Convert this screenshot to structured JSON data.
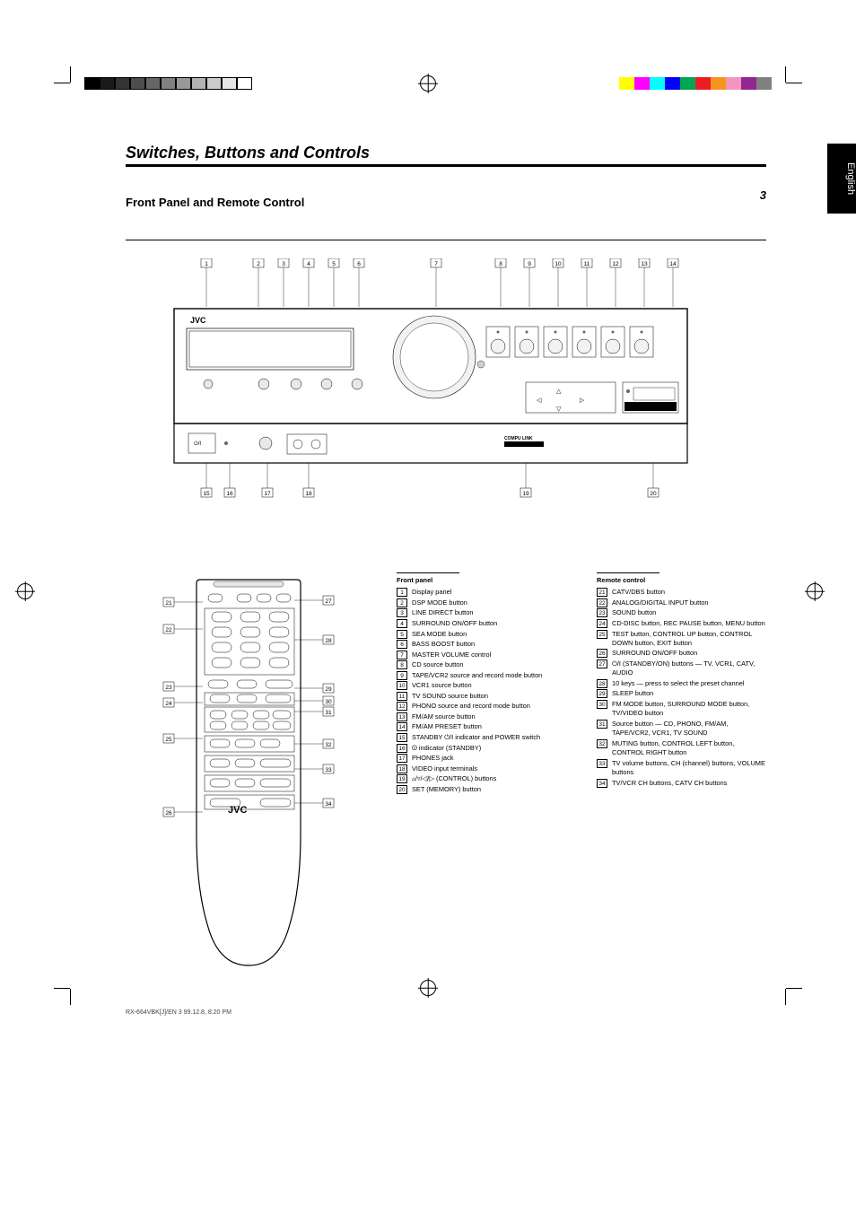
{
  "print": {
    "gray_chips": [
      "#000000",
      "#1a1a1a",
      "#333333",
      "#4d4d4d",
      "#666666",
      "#808080",
      "#999999",
      "#b3b3b3",
      "#cccccc",
      "#e6e6e6",
      "#ffffff"
    ],
    "gray_chip_border": "#000000",
    "color_chips": [
      "#ffff00",
      "#ff00ff",
      "#00ffff",
      "#0000ff",
      "#00a651",
      "#ed1c24",
      "#f7941d",
      "#f495bf",
      "#92278f",
      "#808080"
    ]
  },
  "page_number": "3",
  "tab_label": "English",
  "heading": "Switches, Buttons and Controls",
  "front_panel_heading": "Front Panel and Remote Control",
  "brand": "JVC",
  "front_labels": {
    "1": "1",
    "2": "2",
    "3": "3",
    "4": "4",
    "5": "5",
    "6": "6",
    "7": "7",
    "8": "8",
    "9": "9",
    "10": "10",
    "11": "11",
    "12": "12",
    "13": "13",
    "14": "14",
    "15": "15",
    "16": "16",
    "17": "17",
    "18": "18",
    "19": "19",
    "20": "20"
  },
  "remote_labels": {
    "21": "21",
    "22": "22",
    "23": "23",
    "24": "24",
    "25": "25",
    "26": "26",
    "27": "27",
    "28": "28",
    "29": "29",
    "30": "30",
    "31": "31",
    "32": "32",
    "33": "33",
    "34": "34"
  },
  "col1_head": "Front panel",
  "col1": [
    {
      "n": "1",
      "t": "Display panel"
    },
    {
      "n": "2",
      "t": "DSP MODE button"
    },
    {
      "n": "3",
      "t": "LINE DIRECT button"
    },
    {
      "n": "4",
      "t": "SURROUND ON/OFF button"
    },
    {
      "n": "5",
      "t": "SEA MODE button"
    },
    {
      "n": "6",
      "t": "BASS BOOST button"
    },
    {
      "n": "7",
      "t": "MASTER VOLUME control"
    },
    {
      "n": "8",
      "t": "CD source button"
    },
    {
      "n": "9",
      "t": "TAPE/VCR2 source and record mode button"
    },
    {
      "n": "10",
      "t": "VCR1 source button"
    },
    {
      "n": "11",
      "t": "TV SOUND source button"
    },
    {
      "n": "12",
      "t": "PHONO source and record mode button"
    },
    {
      "n": "13",
      "t": "FM/AM source button"
    },
    {
      "n": "14",
      "t": "FM/AM PRESET button"
    },
    {
      "n": "15",
      "t": "STANDBY ⏻/I indicator and POWER switch"
    },
    {
      "n": "16",
      "t": "⏼ indicator (STANDBY)"
    },
    {
      "n": "17",
      "t": "PHONES jack"
    },
    {
      "n": "18",
      "t": "VIDEO input terminals"
    },
    {
      "n": "19",
      "t": "▵/▿/◁/▷ (CONTROL) buttons"
    },
    {
      "n": "20",
      "t": "SET (MEMORY) button"
    }
  ],
  "col2_head": "Remote control",
  "col2": [
    {
      "n": "21",
      "t": "CATV/DBS button"
    },
    {
      "n": "22",
      "t": "ANALOG/DIGITAL INPUT button"
    },
    {
      "n": "23",
      "t": "SOUND button"
    },
    {
      "n": "24",
      "t": "CD-DISC button, REC PAUSE button, MENU button"
    },
    {
      "n": "25",
      "t": "TEST button, CONTROL UP button, CONTROL DOWN button, EXIT button"
    },
    {
      "n": "26",
      "t": "SURROUND ON/OFF button"
    },
    {
      "n": "27",
      "t": "⏻/I (STANDBY/ON) buttons — TV, VCR1, CATV, AUDIO"
    },
    {
      "n": "28",
      "t": "10 keys — press to select the preset channel"
    },
    {
      "n": "29",
      "t": "SLEEP button"
    },
    {
      "n": "30",
      "t": "FM MODE button, SURROUND MODE button, TV/VIDEO button"
    },
    {
      "n": "31",
      "t": "Source button — CD, PHONO, FM/AM, TAPE/VCR2, VCR1, TV SOUND"
    },
    {
      "n": "32",
      "t": "MUTING button, CONTROL LEFT button, CONTROL RIGHT button"
    },
    {
      "n": "33",
      "t": "TV volume buttons, CH (channel) buttons, VOLUME buttons"
    },
    {
      "n": "34",
      "t": "TV/VCR CH buttons, CATV CH buttons"
    }
  ],
  "footer": "RX-664VBK[J]/EN   3   99.12.8, 8:20 PM"
}
